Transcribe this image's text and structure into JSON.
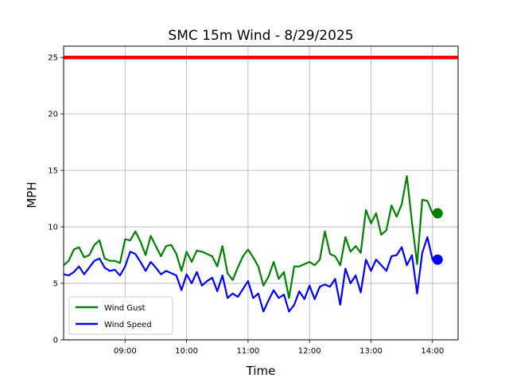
{
  "chart_data": {
    "type": "line",
    "title": "SMC 15m Wind - 8/29/2025",
    "xlabel": "Time",
    "ylabel": "MPH",
    "xlim": [
      "08:00",
      "14:25"
    ],
    "ylim": [
      0,
      26
    ],
    "x_ticks": [
      "09:00",
      "10:00",
      "11:00",
      "12:00",
      "13:00",
      "14:00"
    ],
    "y_ticks": [
      0,
      5,
      10,
      15,
      20,
      25
    ],
    "grid": true,
    "legend": "lower-left",
    "threshold": {
      "value": 25,
      "color": "#ff0000"
    },
    "series": [
      {
        "name": "Wind Gust",
        "color": "#008000",
        "x": [
          "08:00",
          "08:05",
          "08:10",
          "08:15",
          "08:20",
          "08:25",
          "08:30",
          "08:35",
          "08:40",
          "08:45",
          "08:50",
          "08:55",
          "09:00",
          "09:05",
          "09:10",
          "09:15",
          "09:20",
          "09:25",
          "09:30",
          "09:35",
          "09:40",
          "09:45",
          "09:50",
          "09:55",
          "10:00",
          "10:05",
          "10:10",
          "10:15",
          "10:20",
          "10:25",
          "10:30",
          "10:35",
          "10:40",
          "10:45",
          "10:50",
          "10:55",
          "11:00",
          "11:05",
          "11:10",
          "11:15",
          "11:20",
          "11:25",
          "11:30",
          "11:35",
          "11:40",
          "11:45",
          "11:50",
          "11:55",
          "12:00",
          "12:05",
          "12:10",
          "12:15",
          "12:20",
          "12:25",
          "12:30",
          "12:35",
          "12:40",
          "12:45",
          "12:50",
          "12:55",
          "13:00",
          "13:05",
          "13:10",
          "13:15",
          "13:20",
          "13:25",
          "13:30",
          "13:35",
          "13:40",
          "13:45",
          "13:50",
          "13:55",
          "14:00",
          "14:05"
        ],
        "values": [
          6.6,
          7.0,
          8.0,
          8.2,
          7.3,
          7.5,
          8.4,
          8.8,
          7.2,
          7.0,
          7.0,
          6.8,
          8.9,
          8.8,
          9.6,
          8.7,
          7.5,
          9.2,
          8.3,
          7.4,
          8.3,
          8.4,
          7.6,
          6.1,
          7.8,
          6.9,
          7.9,
          7.8,
          7.6,
          7.4,
          6.5,
          8.3,
          5.9,
          5.3,
          6.4,
          7.4,
          8.0,
          7.3,
          6.5,
          4.8,
          5.6,
          6.9,
          5.4,
          6.0,
          3.7,
          6.5,
          6.5,
          6.7,
          6.9,
          6.6,
          7.1,
          9.6,
          7.6,
          7.4,
          6.6,
          9.1,
          7.8,
          8.3,
          7.7,
          11.5,
          10.3,
          11.2,
          9.3,
          9.7,
          11.9,
          10.9,
          12.0,
          14.5,
          10.4,
          6.7,
          12.4,
          12.3,
          11.2,
          11.2
        ]
      },
      {
        "name": "Wind Speed",
        "color": "#0000ff",
        "x": [
          "08:00",
          "08:05",
          "08:10",
          "08:15",
          "08:20",
          "08:25",
          "08:30",
          "08:35",
          "08:40",
          "08:45",
          "08:50",
          "08:55",
          "09:00",
          "09:05",
          "09:10",
          "09:15",
          "09:20",
          "09:25",
          "09:30",
          "09:35",
          "09:40",
          "09:45",
          "09:50",
          "09:55",
          "10:00",
          "10:05",
          "10:10",
          "10:15",
          "10:20",
          "10:25",
          "10:30",
          "10:35",
          "10:40",
          "10:45",
          "10:50",
          "10:55",
          "11:00",
          "11:05",
          "11:10",
          "11:15",
          "11:20",
          "11:25",
          "11:30",
          "11:35",
          "11:40",
          "11:45",
          "11:50",
          "11:55",
          "12:00",
          "12:05",
          "12:10",
          "12:15",
          "12:20",
          "12:25",
          "12:30",
          "12:35",
          "12:40",
          "12:45",
          "12:50",
          "12:55",
          "13:00",
          "13:05",
          "13:10",
          "13:15",
          "13:20",
          "13:25",
          "13:30",
          "13:35",
          "13:40",
          "13:45",
          "13:50",
          "13:55",
          "14:00",
          "14:05"
        ],
        "values": [
          5.8,
          5.7,
          6.0,
          6.5,
          5.8,
          6.4,
          7.0,
          7.2,
          6.4,
          6.1,
          6.2,
          5.7,
          6.5,
          7.8,
          7.6,
          6.9,
          6.1,
          6.9,
          6.4,
          5.8,
          6.1,
          5.9,
          5.7,
          4.4,
          5.8,
          5.0,
          6.0,
          4.8,
          5.2,
          5.5,
          4.3,
          5.7,
          3.7,
          4.1,
          3.8,
          4.5,
          5.2,
          3.7,
          4.1,
          2.5,
          3.5,
          4.4,
          3.7,
          4.0,
          2.5,
          3.1,
          4.3,
          3.6,
          4.8,
          3.6,
          4.7,
          4.9,
          4.7,
          5.4,
          3.1,
          6.3,
          5.0,
          5.7,
          4.2,
          7.1,
          6.1,
          7.1,
          6.6,
          6.1,
          7.4,
          7.5,
          8.2,
          6.6,
          7.5,
          4.1,
          7.7,
          9.1,
          7.1,
          7.1
        ]
      }
    ],
    "latest_markers": [
      {
        "series": "Wind Gust",
        "x": "14:05",
        "value": 11.2,
        "color": "#008000"
      },
      {
        "series": "Wind Speed",
        "x": "14:05",
        "value": 7.1,
        "color": "#0000ff"
      }
    ]
  }
}
